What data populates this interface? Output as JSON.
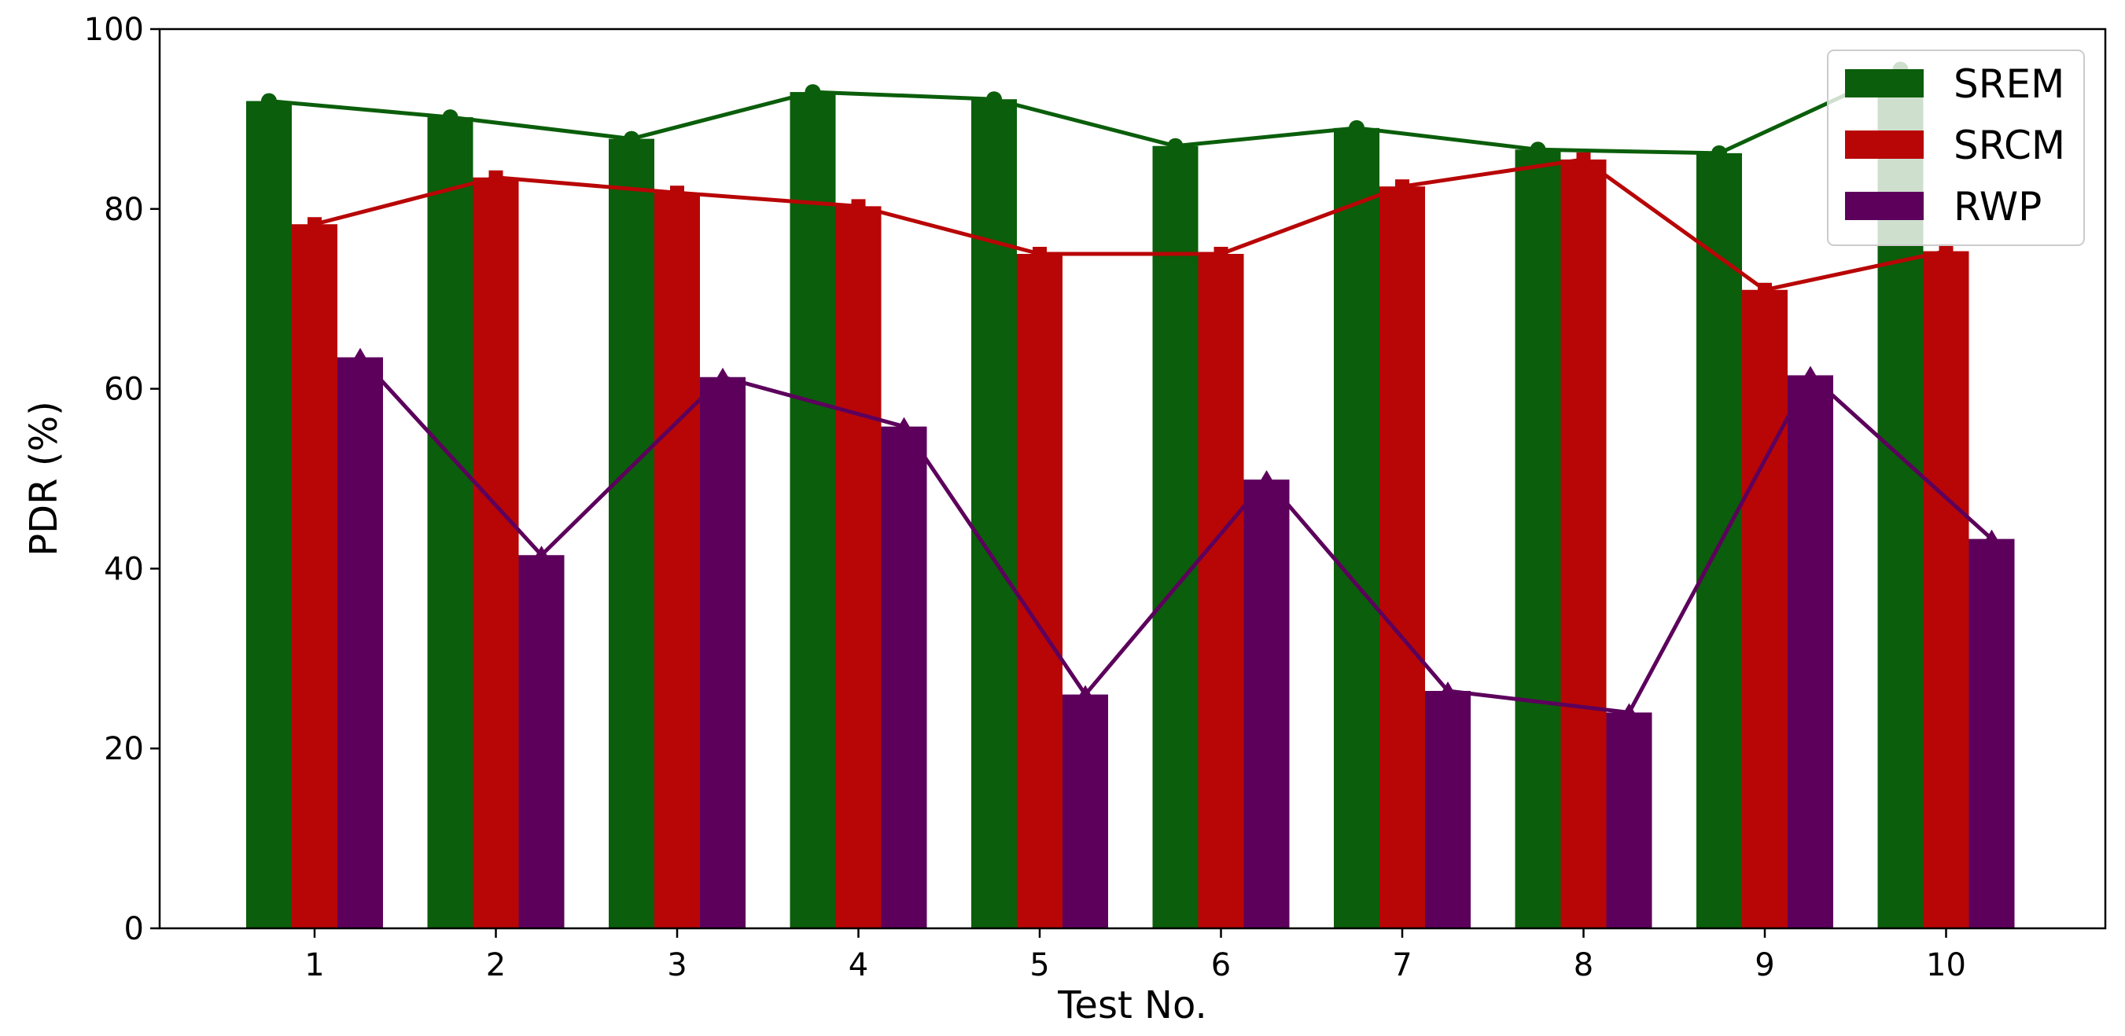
{
  "chart_data": {
    "type": "bar",
    "title": "",
    "xlabel": "Test No.",
    "ylabel": "PDR (%)",
    "categories": [
      "1",
      "2",
      "3",
      "4",
      "5",
      "6",
      "7",
      "8",
      "9",
      "10"
    ],
    "ylim": [
      0,
      100
    ],
    "yticks": [
      0,
      20,
      40,
      60,
      80,
      100
    ],
    "ytick_labels": [
      "0",
      "20",
      "40",
      "60",
      "80",
      "100"
    ],
    "grid": false,
    "legend_position": "top-right",
    "series": [
      {
        "name": "SREM",
        "color": "#0b5e0b",
        "marker": "circle",
        "values": [
          92.0,
          90.2,
          87.8,
          93.0,
          92.2,
          87.0,
          89.0,
          86.6,
          86.2,
          95.5
        ]
      },
      {
        "name": "SRCM",
        "color": "#b80606",
        "marker": "square",
        "values": [
          78.3,
          83.5,
          81.8,
          80.3,
          75.0,
          75.0,
          82.5,
          85.5,
          71.0,
          75.3
        ]
      },
      {
        "name": "RWP",
        "color": "#5c005c",
        "marker": "triangle",
        "values": [
          63.5,
          41.5,
          61.3,
          55.8,
          26.0,
          49.9,
          26.4,
          24.0,
          61.5,
          43.3
        ]
      }
    ]
  }
}
